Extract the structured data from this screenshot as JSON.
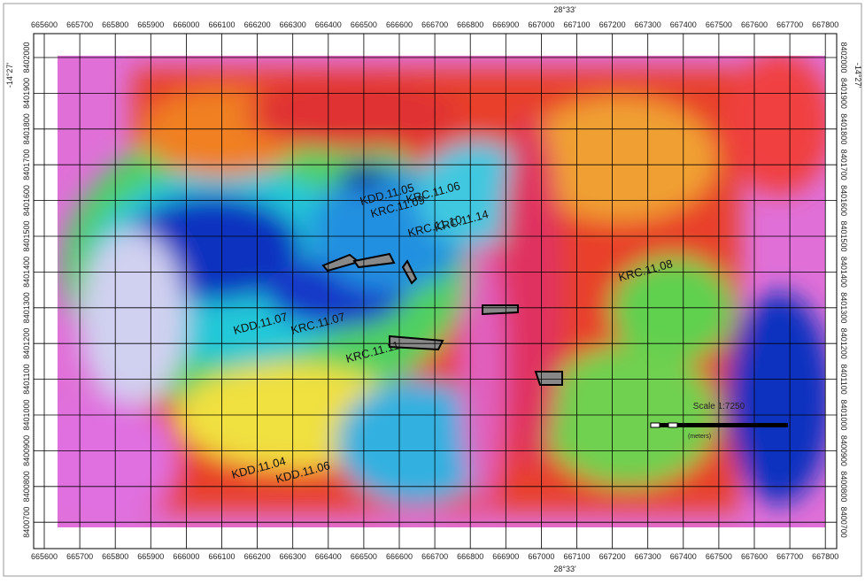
{
  "map": {
    "eastings": [
      "665600",
      "665700",
      "665800",
      "665900",
      "666000",
      "666100",
      "666200",
      "666300",
      "666400",
      "666500",
      "666600",
      "666700",
      "666800",
      "666900",
      "667000",
      "667100",
      "667200",
      "667300",
      "667400",
      "667500",
      "667600",
      "667700",
      "667800"
    ],
    "northings": [
      "8402000",
      "8401900",
      "8401800",
      "8401700",
      "8401600",
      "8401500",
      "8401400",
      "8401300",
      "8401200",
      "8401100",
      "8401000",
      "8400900",
      "8400800",
      "8400700"
    ],
    "longitude_label": "28°33'",
    "latitude_label": "-14°27'",
    "holes": [
      "KDD.11.05",
      "KRC.11.09",
      "KRC.11.06",
      "KRC.11.10",
      "KRC.11.14",
      "KRC.11.08",
      "KRC.11.11",
      "KDD.11.04",
      "KDD.11.06",
      "KRC.11.07",
      "KDD.11.07"
    ],
    "scale": {
      "title": "Scale 1:7250",
      "units": "(meters)"
    }
  }
}
